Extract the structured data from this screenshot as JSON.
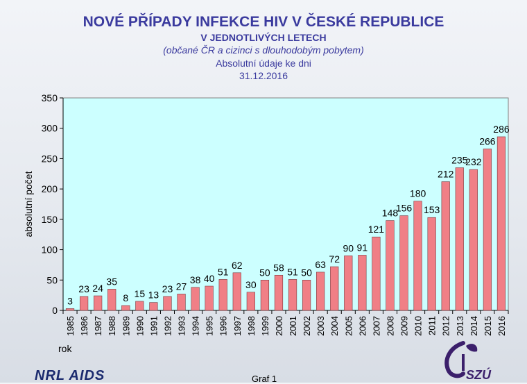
{
  "header": {
    "title": "NOVÉ PŘÍPADY INFEKCE HIV V ČESKÉ REPUBLICE",
    "subtitle": "V JEDNOTLIVÝCH LETECH",
    "note": "(občané ČR a cizinci s dlouhodobým pobytem)",
    "basis": "Absolutní údaje ke dni",
    "date": "31.12.2016"
  },
  "footer": {
    "left_logo": "NRL AIDS",
    "caption": "Graf 1",
    "right_logo": "SZÚ"
  },
  "colors": {
    "bar": "#f07f86",
    "plot_bg": "#ccffff",
    "title": "#3a3a9e"
  },
  "chart_data": {
    "type": "bar",
    "title": "NOVÉ PŘÍPADY INFEKCE HIV V ČESKÉ REPUBLICE",
    "xlabel": "rok",
    "ylabel": "absolutní počet",
    "ylim": [
      0,
      350
    ],
    "yticks": [
      0,
      50,
      100,
      150,
      200,
      250,
      300,
      350
    ],
    "grid": false,
    "legend": "none",
    "categories": [
      "1985",
      "1986",
      "1987",
      "1988",
      "1989",
      "1990",
      "1991",
      "1992",
      "1993",
      "1994",
      "1995",
      "1996",
      "1997",
      "1998",
      "1999",
      "2000",
      "2001",
      "2002",
      "2003",
      "2004",
      "2005",
      "2006",
      "2007",
      "2008",
      "2009",
      "2010",
      "2011",
      "2012",
      "2013",
      "2014",
      "2015",
      "2016"
    ],
    "values": [
      3,
      23,
      24,
      35,
      8,
      15,
      13,
      23,
      27,
      38,
      40,
      51,
      62,
      30,
      50,
      58,
      51,
      50,
      63,
      72,
      90,
      91,
      121,
      148,
      156,
      180,
      153,
      212,
      235,
      232,
      266,
      286
    ]
  }
}
